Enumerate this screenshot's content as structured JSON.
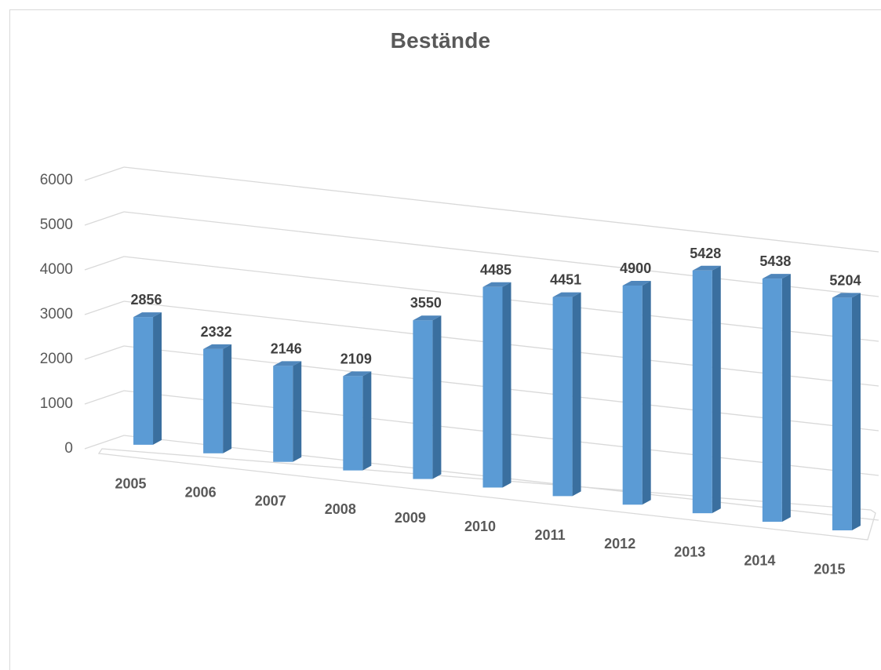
{
  "chart_data": {
    "type": "bar",
    "title": "Bestände",
    "categories": [
      "2005",
      "2006",
      "2007",
      "2008",
      "2009",
      "2010",
      "2011",
      "2012",
      "2013",
      "2014",
      "2015"
    ],
    "values": [
      2856,
      2332,
      2146,
      2109,
      3550,
      4485,
      4451,
      4900,
      5428,
      5438,
      5204
    ],
    "yticks": [
      "0",
      "1000",
      "2000",
      "3000",
      "4000",
      "5000",
      "6000"
    ],
    "ylim": [
      0,
      6000
    ],
    "grid": true,
    "legend": "none",
    "style": "3d-column",
    "colors": {
      "bar_front": "#5b9bd5",
      "bar_side": "#3a6f9f",
      "bar_top": "#4f86bb",
      "grid": "#d9d9d9",
      "text": "#595959",
      "data_label": "#404040"
    }
  }
}
